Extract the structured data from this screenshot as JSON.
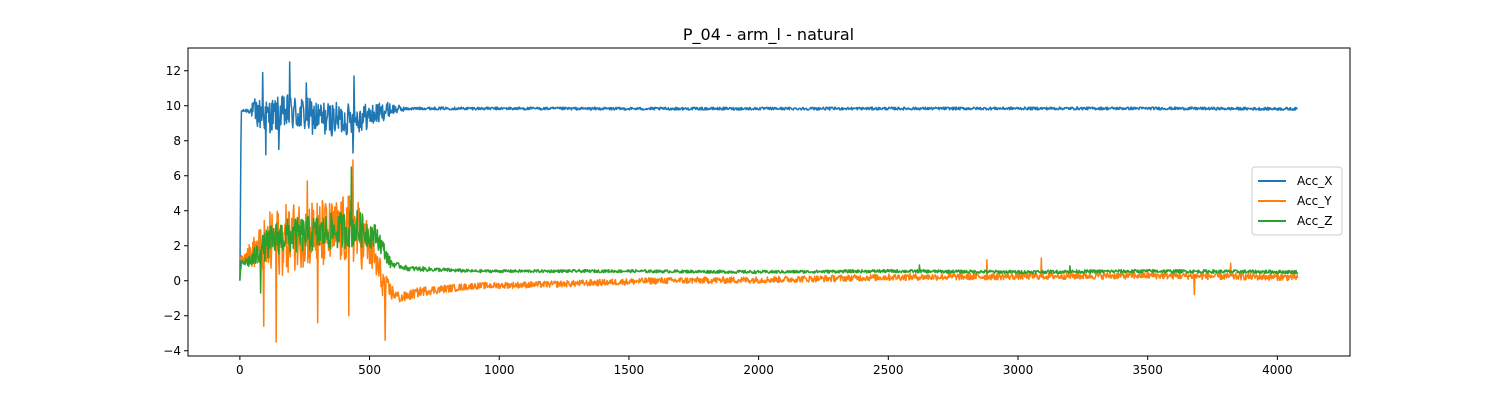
{
  "chart_data": {
    "type": "line",
    "title": "P_04 - arm_l - natural",
    "xlabel": "",
    "ylabel": "",
    "xlim": [
      -200,
      4280
    ],
    "ylim": [
      -4.3,
      13.3
    ],
    "xticks": [
      0,
      500,
      1000,
      1500,
      2000,
      2500,
      3000,
      3500,
      4000
    ],
    "yticks": [
      -4,
      -2,
      0,
      2,
      4,
      6,
      8,
      10,
      12
    ],
    "grid": false,
    "legend_position": "right",
    "n_samples": 4080,
    "series": [
      {
        "name": "Acc_X",
        "color": "#1f77b4",
        "anchors": [
          [
            0,
            0.0
          ],
          [
            5,
            9.7
          ],
          [
            40,
            9.75
          ],
          [
            60,
            9.6
          ],
          [
            100,
            9.4
          ],
          [
            200,
            9.6
          ],
          [
            300,
            9.3
          ],
          [
            400,
            9.2
          ],
          [
            500,
            9.4
          ],
          [
            580,
            9.8
          ],
          [
            700,
            9.85
          ],
          [
            1500,
            9.83
          ],
          [
            2500,
            9.84
          ],
          [
            3500,
            9.85
          ],
          [
            4075,
            9.82
          ]
        ],
        "noise": [
          [
            0,
            0.0
          ],
          [
            40,
            0.2
          ],
          [
            60,
            0.9
          ],
          [
            200,
            1.1
          ],
          [
            450,
            0.9
          ],
          [
            560,
            0.5
          ],
          [
            640,
            0.08
          ],
          [
            4075,
            0.08
          ]
        ],
        "spikes": [
          [
            88,
            11.9
          ],
          [
            192,
            12.5
          ],
          [
            440,
            11.7
          ],
          [
            100,
            7.2
          ],
          [
            435,
            7.3
          ],
          [
            255,
            11.3
          ],
          [
            150,
            7.5
          ]
        ]
      },
      {
        "name": "Acc_Y",
        "color": "#ff7f0e",
        "anchors": [
          [
            0,
            1.3
          ],
          [
            40,
            1.5
          ],
          [
            70,
            1.8
          ],
          [
            150,
            2.2
          ],
          [
            250,
            2.8
          ],
          [
            350,
            2.6
          ],
          [
            430,
            3.0
          ],
          [
            500,
            2.0
          ],
          [
            560,
            -0.4
          ],
          [
            620,
            -1.0
          ],
          [
            700,
            -0.6
          ],
          [
            900,
            -0.3
          ],
          [
            1200,
            -0.2
          ],
          [
            1600,
            0.0
          ],
          [
            2000,
            0.05
          ],
          [
            2500,
            0.2
          ],
          [
            3000,
            0.25
          ],
          [
            3500,
            0.3
          ],
          [
            4075,
            0.2
          ]
        ],
        "noise": [
          [
            0,
            0.1
          ],
          [
            60,
            1.0
          ],
          [
            120,
            2.0
          ],
          [
            450,
            2.0
          ],
          [
            540,
            1.0
          ],
          [
            600,
            0.3
          ],
          [
            900,
            0.18
          ],
          [
            4075,
            0.2
          ]
        ],
        "spikes": [
          [
            92,
            -2.6
          ],
          [
            140,
            -3.5
          ],
          [
            300,
            -2.4
          ],
          [
            420,
            -2.0
          ],
          [
            560,
            -3.4
          ],
          [
            435,
            6.9
          ],
          [
            260,
            5.7
          ],
          [
            2880,
            1.2
          ],
          [
            3090,
            1.3
          ],
          [
            3680,
            -0.8
          ],
          [
            3820,
            1.0
          ]
        ]
      },
      {
        "name": "Acc_Z",
        "color": "#2ca02c",
        "anchors": [
          [
            0,
            0.0
          ],
          [
            5,
            1.0
          ],
          [
            50,
            1.2
          ],
          [
            80,
            1.8
          ],
          [
            150,
            2.5
          ],
          [
            300,
            2.7
          ],
          [
            450,
            3.0
          ],
          [
            530,
            2.5
          ],
          [
            580,
            1.0
          ],
          [
            650,
            0.7
          ],
          [
            900,
            0.55
          ],
          [
            1500,
            0.55
          ],
          [
            2000,
            0.5
          ],
          [
            2500,
            0.55
          ],
          [
            3000,
            0.5
          ],
          [
            3500,
            0.55
          ],
          [
            4075,
            0.5
          ]
        ],
        "noise": [
          [
            0,
            0.1
          ],
          [
            60,
            0.6
          ],
          [
            120,
            1.0
          ],
          [
            450,
            1.1
          ],
          [
            540,
            0.6
          ],
          [
            600,
            0.15
          ],
          [
            900,
            0.08
          ],
          [
            4075,
            0.1
          ]
        ],
        "spikes": [
          [
            430,
            6.5
          ],
          [
            80,
            -0.7
          ],
          [
            2620,
            0.9
          ],
          [
            3200,
            0.85
          ]
        ]
      }
    ]
  }
}
